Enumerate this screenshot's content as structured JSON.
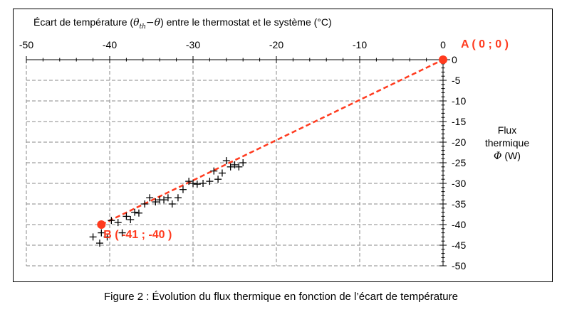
{
  "chart_data": {
    "type": "scatter",
    "title": "",
    "x_axis": {
      "label_parts": [
        "Écart de température (",
        "θ",
        "th",
        "−θ",
        ") entre le thermostat et le système (°C)"
      ],
      "range": [
        -50,
        0
      ],
      "ticks": [
        -50,
        -40,
        -30,
        -20,
        -10,
        0
      ],
      "position": "top"
    },
    "y_axis": {
      "label_lines": [
        "Flux",
        "thermique",
        "Φ (W)"
      ],
      "range": [
        -50,
        0
      ],
      "ticks": [
        0,
        -5,
        -10,
        -15,
        -20,
        -25,
        -30,
        -35,
        -40,
        -45,
        -50
      ],
      "position": "right"
    },
    "grid": true,
    "marker": "+",
    "colors": {
      "points": "#000000",
      "line": "#ff3b1f",
      "labels": "#ff3b1f"
    },
    "points": [
      [
        -42.0,
        -43.0
      ],
      [
        -41.2,
        -44.5
      ],
      [
        -41.0,
        -42.0
      ],
      [
        -40.3,
        -43.0
      ],
      [
        -39.8,
        -39.0
      ],
      [
        -39.0,
        -39.5
      ],
      [
        -38.5,
        -42.0
      ],
      [
        -38.0,
        -38.0
      ],
      [
        -37.5,
        -38.8
      ],
      [
        -37.0,
        -37.0
      ],
      [
        -36.5,
        -37.2
      ],
      [
        -35.8,
        -35.0
      ],
      [
        -35.2,
        -33.5
      ],
      [
        -34.5,
        -34.5
      ],
      [
        -34.0,
        -34.0
      ],
      [
        -33.5,
        -34.0
      ],
      [
        -33.0,
        -33.5
      ],
      [
        -32.5,
        -35.0
      ],
      [
        -31.8,
        -33.5
      ],
      [
        -31.2,
        -31.5
      ],
      [
        -30.5,
        -29.5
      ],
      [
        -30.0,
        -30.0
      ],
      [
        -29.5,
        -30.2
      ],
      [
        -28.8,
        -30.0
      ],
      [
        -28.0,
        -29.5
      ],
      [
        -27.5,
        -27.0
      ],
      [
        -27.0,
        -29.0
      ],
      [
        -26.5,
        -27.5
      ],
      [
        -26.0,
        -24.5
      ],
      [
        -25.5,
        -26.0
      ],
      [
        -25.0,
        -25.5
      ],
      [
        -24.5,
        -26.0
      ],
      [
        -24.0,
        -25.0
      ]
    ],
    "line": {
      "from": [
        -41,
        -40
      ],
      "to": [
        0,
        0
      ]
    },
    "annotations": [
      {
        "id": "A",
        "text": "A ( 0 ; 0 )",
        "x": 0,
        "y": 0
      },
      {
        "id": "B",
        "text": "B ( -41 ; -40 )",
        "x": -41,
        "y": -40
      }
    ]
  },
  "caption": "Figure 2 : Évolution du flux thermique en fonction de l’écart de température"
}
